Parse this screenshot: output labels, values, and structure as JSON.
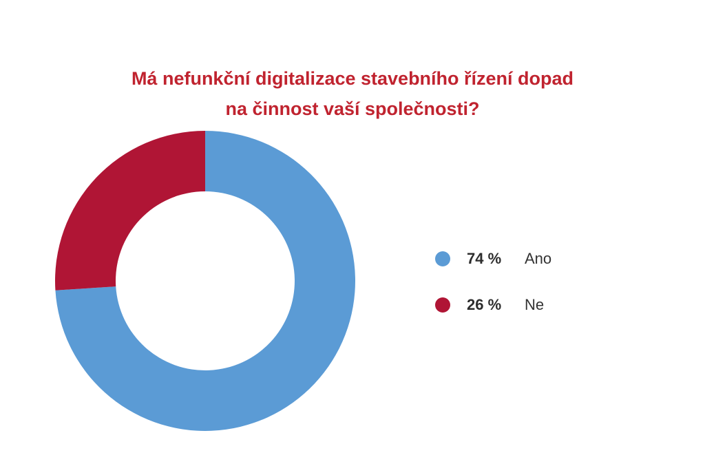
{
  "chart_data": {
    "type": "pie",
    "variant": "donut",
    "title_lines": [
      "Má nefunkční digitalizace stavebního řízení dopad",
      "na činnost vaší společnosti?"
    ],
    "slices": [
      {
        "label": "Ano",
        "value": 74,
        "value_label": "74 %",
        "color": "#5b9bd5"
      },
      {
        "label": "Ne",
        "value": 26,
        "value_label": "26 %",
        "color": "#b01535"
      }
    ],
    "legend_placement": "right"
  }
}
